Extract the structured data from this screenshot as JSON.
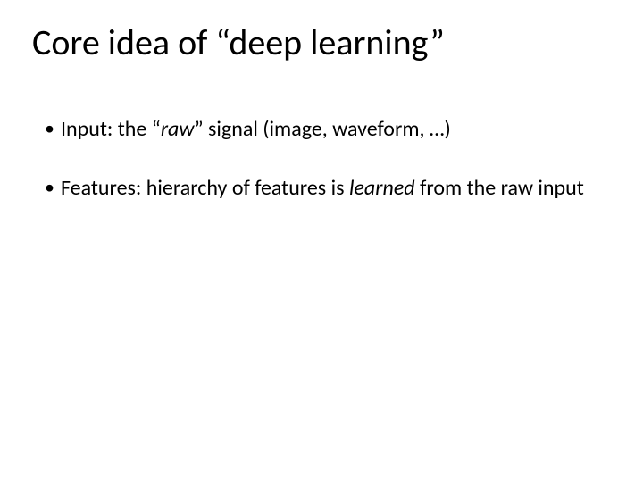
{
  "slide": {
    "title": "Core idea of “deep learning”",
    "title_fontsize": 40,
    "title_color": "#000000",
    "background_color": "#ffffff",
    "body_fontsize": 24,
    "bullets": [
      {
        "parts": [
          {
            "text": "Input: the “",
            "italic": false
          },
          {
            "text": "raw",
            "italic": true
          },
          {
            "text": "” signal (image, waveform, …)",
            "italic": false
          }
        ]
      },
      {
        "parts": [
          {
            "text": "Features: hierarchy of features is ",
            "italic": false
          },
          {
            "text": "learned",
            "italic": true
          },
          {
            "text": " from the raw input",
            "italic": false
          }
        ]
      }
    ]
  }
}
